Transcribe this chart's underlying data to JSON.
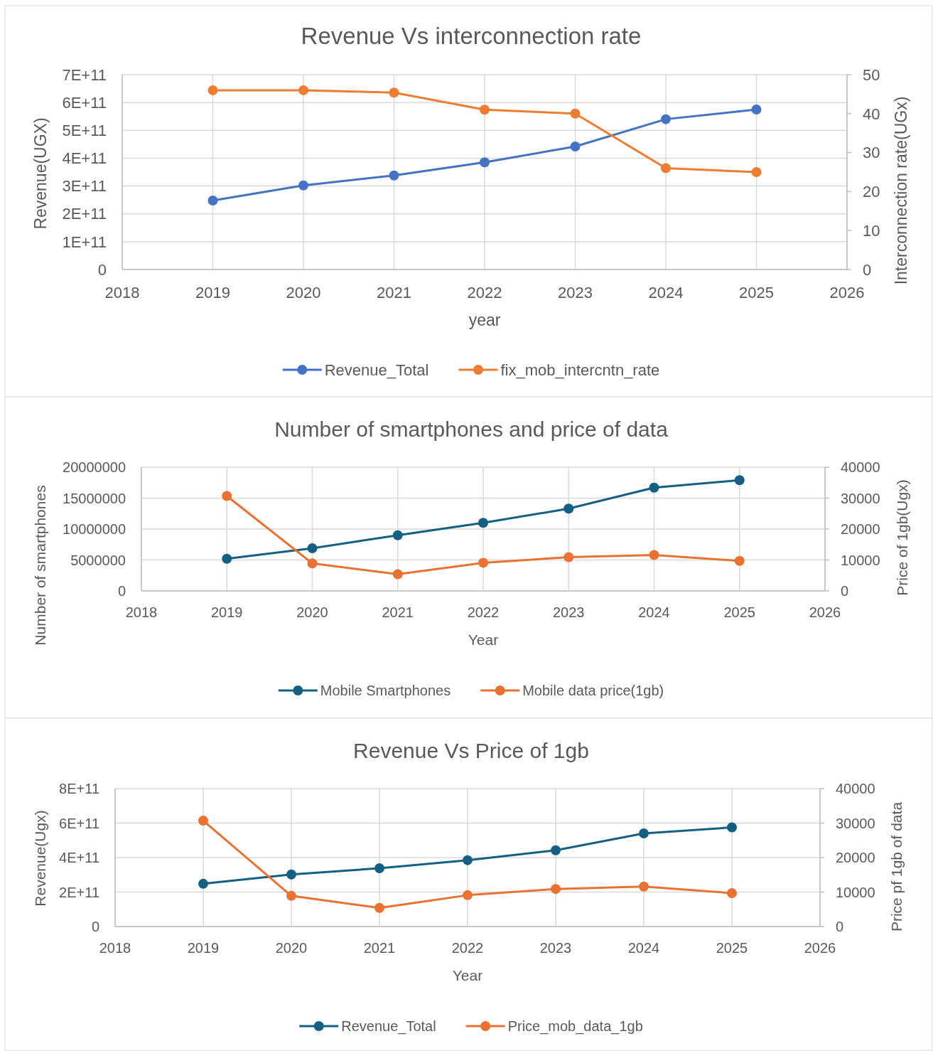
{
  "chart_data": [
    {
      "type": "line",
      "title": "Revenue Vs interconnection rate",
      "xlabel": "year",
      "ylabel": "Revenue(UGX)",
      "y2label": "Interconnection rate(UGx)",
      "x": [
        2019,
        2020,
        2021,
        2022,
        2023,
        2024,
        2025
      ],
      "series": [
        {
          "name": "Revenue_Total",
          "color": "#4472c4",
          "values": [
            248000000000.0,
            302000000000.0,
            338000000000.0,
            385000000000.0,
            442000000000.0,
            540000000000.0,
            575000000000.0
          ]
        },
        {
          "name": "fix_mob_intercntn_rate",
          "color": "#ed7d31",
          "axis": "y2",
          "values": [
            46,
            46,
            45.4,
            41,
            40,
            26,
            25
          ]
        }
      ],
      "xlim": [
        2018,
        2026
      ],
      "xticks": [
        2018,
        2019,
        2020,
        2021,
        2022,
        2023,
        2024,
        2025,
        2026
      ],
      "ylim": [
        0,
        700000000000.0
      ],
      "yticks": [
        0,
        {
          "value": 100000000000.0,
          "label": "1E+11"
        },
        {
          "value": 200000000000.0,
          "label": "2E+11"
        },
        {
          "value": 300000000000.0,
          "label": "3E+11"
        },
        {
          "value": 400000000000.0,
          "label": "4E+11"
        },
        {
          "value": 500000000000.0,
          "label": "5E+11"
        },
        {
          "value": 600000000000.0,
          "label": "6E+11"
        },
        {
          "value": 700000000000.0,
          "label": "7E+11"
        }
      ],
      "y2lim": [
        0,
        50
      ],
      "y2ticks": [
        0,
        10,
        20,
        30,
        40,
        50
      ],
      "grid": true,
      "legend": "bottom",
      "marker": "circle",
      "line_style": "solid"
    },
    {
      "type": "line",
      "title": "Number of smartphones and price of data",
      "xlabel": "Year",
      "ylabel": "Number of smartphones",
      "y2label": "Price of 1gb(Ugx)",
      "x": [
        2019,
        2020,
        2021,
        2022,
        2023,
        2024,
        2025
      ],
      "series": [
        {
          "name": "Mobile Smartphones",
          "color": "#156082",
          "values": [
            5200000,
            6900000,
            9000000,
            11000000,
            13300000,
            16700000,
            17900000
          ]
        },
        {
          "name": "Mobile data price(1gb)",
          "color": "#e97132",
          "axis": "y2",
          "values": [
            30700,
            8900,
            5400,
            9100,
            10900,
            11600,
            9700
          ]
        }
      ],
      "xlim": [
        2018,
        2026
      ],
      "xticks": [
        2018,
        2019,
        2020,
        2021,
        2022,
        2023,
        2024,
        2025,
        2026
      ],
      "ylim": [
        0,
        20000000
      ],
      "yticks": [
        0,
        5000000,
        10000000,
        15000000,
        20000000
      ],
      "y2lim": [
        0,
        40000
      ],
      "y2ticks": [
        0,
        10000,
        20000,
        30000,
        40000
      ],
      "grid": true,
      "legend": "bottom",
      "marker": "circle",
      "line_style": "solid"
    },
    {
      "type": "line",
      "title": "Revenue Vs Price of 1gb",
      "xlabel": "Year",
      "ylabel": "Revenue(Ugx)",
      "y2label": "Price pf 1gb of data",
      "x": [
        2019,
        2020,
        2021,
        2022,
        2023,
        2024,
        2025
      ],
      "series": [
        {
          "name": "Revenue_Total",
          "color": "#156082",
          "values": [
            248000000000.0,
            302000000000.0,
            338000000000.0,
            385000000000.0,
            442000000000.0,
            540000000000.0,
            575000000000.0
          ]
        },
        {
          "name": "Price_mob_data_1gb",
          "color": "#e97132",
          "axis": "y2",
          "values": [
            30700,
            8900,
            5400,
            9100,
            10900,
            11600,
            9700
          ]
        }
      ],
      "xlim": [
        2018,
        2026
      ],
      "xticks": [
        2018,
        2019,
        2020,
        2021,
        2022,
        2023,
        2024,
        2025,
        2026
      ],
      "ylim": [
        0,
        800000000000.0
      ],
      "yticks": [
        0,
        {
          "value": 200000000000.0,
          "label": "2E+11"
        },
        {
          "value": 400000000000.0,
          "label": "4E+11"
        },
        {
          "value": 600000000000.0,
          "label": "6E+11"
        },
        {
          "value": 800000000000.0,
          "label": "8E+11"
        }
      ],
      "y2lim": [
        0,
        40000
      ],
      "y2ticks": [
        0,
        10000,
        20000,
        30000,
        40000
      ],
      "grid": true,
      "legend": "bottom",
      "marker": "circle",
      "line_style": "solid"
    }
  ]
}
